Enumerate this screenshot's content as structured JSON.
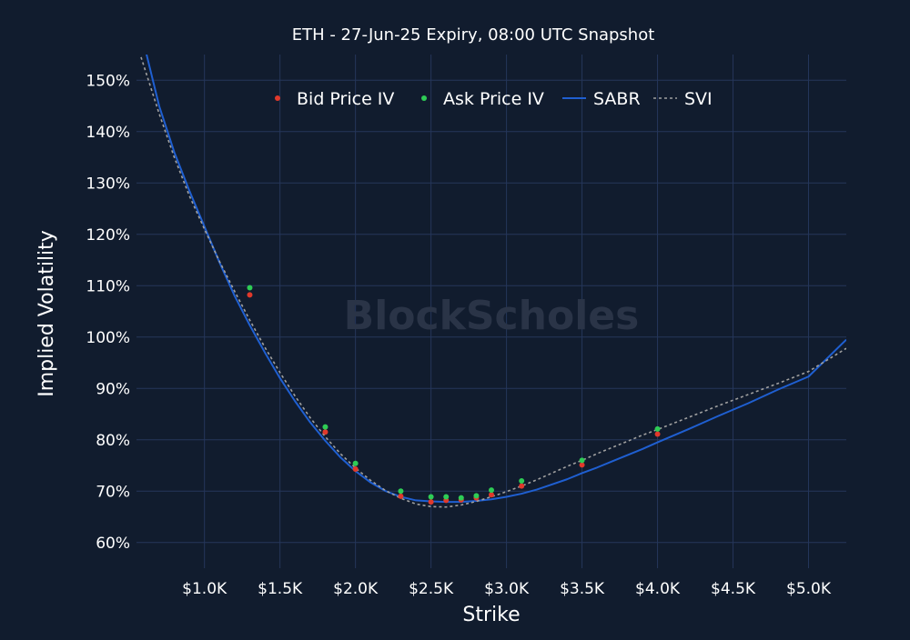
{
  "chart_data": {
    "type": "scatter",
    "title": "ETH - 27-Jun-25 Expiry, 08:00 UTC Snapshot",
    "xlabel": "Strike",
    "ylabel": "Implied Volatility",
    "watermark": "BlockScholes",
    "xlim": [
      550,
      5250
    ],
    "ylim": [
      55,
      155
    ],
    "x_ticks": [
      1000,
      1500,
      2000,
      2500,
      3000,
      3500,
      4000,
      4500,
      5000
    ],
    "x_tick_labels": [
      "$1.0K",
      "$1.5K",
      "$2.0K",
      "$2.5K",
      "$3.0K",
      "$3.5K",
      "$4.0K",
      "$4.5K",
      "$5.0K"
    ],
    "y_ticks": [
      60,
      70,
      80,
      90,
      100,
      110,
      120,
      130,
      140,
      150
    ],
    "y_tick_labels": [
      "60%",
      "70%",
      "80%",
      "90%",
      "100%",
      "110%",
      "120%",
      "130%",
      "140%",
      "150%"
    ],
    "grid": true,
    "legend_position": "top-center",
    "colors": {
      "background": "#111c2e",
      "grid": "#25365a",
      "bid": "#e0392b",
      "ask": "#2ecc55",
      "sabr": "#1f5fd1",
      "svi": "#a0a0a0",
      "text": "#ffffff"
    },
    "series": [
      {
        "name": "Bid Price IV",
        "kind": "markers",
        "x": [
          1300,
          1800,
          2000,
          2300,
          2500,
          2600,
          2700,
          2800,
          2900,
          3100,
          3500,
          4000
        ],
        "y": [
          108.2,
          81.5,
          74.3,
          69.0,
          67.9,
          68.2,
          68.3,
          68.7,
          69.3,
          71.0,
          75.1,
          81.1
        ]
      },
      {
        "name": "Ask Price IV",
        "kind": "markers",
        "x": [
          1300,
          1800,
          2000,
          2300,
          2500,
          2600,
          2700,
          2800,
          2900,
          3100,
          3500,
          4000
        ],
        "y": [
          109.6,
          82.5,
          75.4,
          70.0,
          68.9,
          68.9,
          68.7,
          69.1,
          70.2,
          72.0,
          76.0,
          82.1
        ]
      },
      {
        "name": "SABR",
        "kind": "line",
        "x": [
          600,
          700,
          800,
          900,
          1000,
          1100,
          1200,
          1300,
          1400,
          1500,
          1600,
          1700,
          1800,
          1900,
          2000,
          2100,
          2200,
          2300,
          2400,
          2500,
          2600,
          2700,
          2800,
          2900,
          3000,
          3100,
          3200,
          3300,
          3400,
          3500,
          3600,
          3700,
          3800,
          3900,
          4000,
          4200,
          4400,
          4600,
          4800,
          5000,
          5250
        ],
        "y": [
          157,
          145,
          136,
          128.5,
          121.5,
          114.5,
          108,
          102.3,
          97.0,
          92.0,
          87.5,
          83.4,
          79.8,
          76.6,
          73.9,
          71.7,
          70.0,
          68.9,
          68.2,
          68.0,
          67.9,
          67.9,
          68.1,
          68.4,
          68.9,
          69.5,
          70.3,
          71.3,
          72.3,
          73.5,
          74.6,
          75.8,
          77.0,
          78.2,
          79.5,
          82.0,
          84.6,
          87.1,
          89.8,
          92.3,
          99.5
        ]
      },
      {
        "name": "SVI",
        "kind": "line",
        "x": [
          580,
          700,
          800,
          900,
          1000,
          1100,
          1200,
          1300,
          1400,
          1500,
          1600,
          1700,
          1800,
          1900,
          2000,
          2100,
          2200,
          2300,
          2400,
          2500,
          2600,
          2700,
          2800,
          2900,
          3000,
          3100,
          3200,
          3300,
          3400,
          3500,
          3600,
          3700,
          3800,
          3900,
          4000,
          4200,
          4400,
          4600,
          4800,
          5000,
          5250
        ],
        "y": [
          154.5,
          143.5,
          135,
          127.5,
          121,
          114.7,
          108.9,
          103.3,
          98.0,
          93.1,
          88.5,
          84.3,
          80.6,
          77.3,
          74.5,
          72.1,
          70.1,
          68.6,
          67.5,
          67.0,
          66.9,
          67.3,
          68.0,
          68.9,
          69.9,
          71.0,
          72.2,
          73.5,
          74.8,
          76.0,
          77.3,
          78.5,
          79.7,
          80.9,
          82.0,
          84.3,
          86.6,
          88.8,
          91.0,
          93.3,
          97.8
        ]
      }
    ]
  }
}
